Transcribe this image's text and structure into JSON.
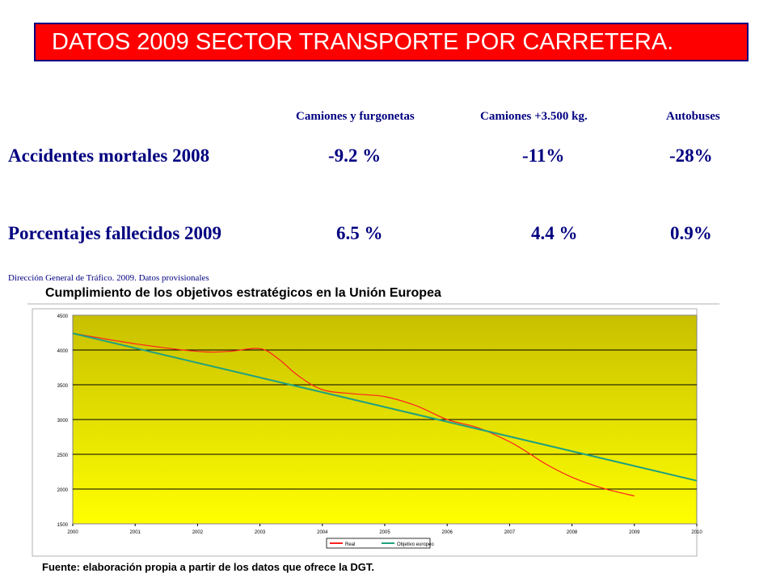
{
  "header": {
    "title": "DATOS 2009 SECTOR TRANSPORTE POR CARRETERA."
  },
  "table": {
    "columns": [
      "Camiones  y furgonetas",
      "Camiones +3.500 kg.",
      "Autobuses"
    ],
    "rows": [
      {
        "label": "Accidentes mortales  2008",
        "values": [
          "-9.2 %",
          "-11%",
          "-28%"
        ]
      },
      {
        "label": "Porcentajes fallecidos  2009",
        "values": [
          "6.5 %",
          "4.4 %",
          "0.9%"
        ]
      }
    ],
    "source": "Dirección  General de Tráfico. 2009. Datos provisionales"
  },
  "chart_data": {
    "type": "line",
    "title": "Cumplimiento de los objetivos estratégicos en la Unión Europea",
    "source": "Fuente: elaboración propia a partir de los datos que ofrece la DGT.",
    "xlabel": "",
    "ylabel": "",
    "xlim": [
      2000,
      2010
    ],
    "ylim": [
      1500,
      4500
    ],
    "x_ticks": [
      "2000",
      "2001",
      "2002",
      "2003",
      "2004",
      "2005",
      "2006",
      "2007",
      "2008",
      "2009",
      "2010"
    ],
    "y_ticks": [
      "1500",
      "2000",
      "2500",
      "3000",
      "3500",
      "4000",
      "4500"
    ],
    "grid": true,
    "legend_position": "bottom",
    "colors": {
      "plot_top": "#c8c000",
      "plot_bottom": "#ffff00",
      "frame": "#b0b0b0"
    },
    "series": [
      {
        "name": "Real",
        "color": "#ff2020",
        "x": [
          2000,
          2001,
          2002,
          2002.5,
          2003,
          2003.3,
          2003.6,
          2004,
          2004.5,
          2005,
          2005.5,
          2006,
          2006.5,
          2007,
          2007.3,
          2007.6,
          2008,
          2008.5,
          2009
        ],
        "y": [
          4240,
          4090,
          3980,
          3980,
          4020,
          3870,
          3640,
          3430,
          3370,
          3330,
          3200,
          3000,
          2880,
          2680,
          2520,
          2350,
          2170,
          2010,
          1900
        ]
      },
      {
        "name": "Objetivo europeo",
        "color": "#20a080",
        "x": [
          2000,
          2010
        ],
        "y": [
          4240,
          2120
        ]
      }
    ]
  }
}
